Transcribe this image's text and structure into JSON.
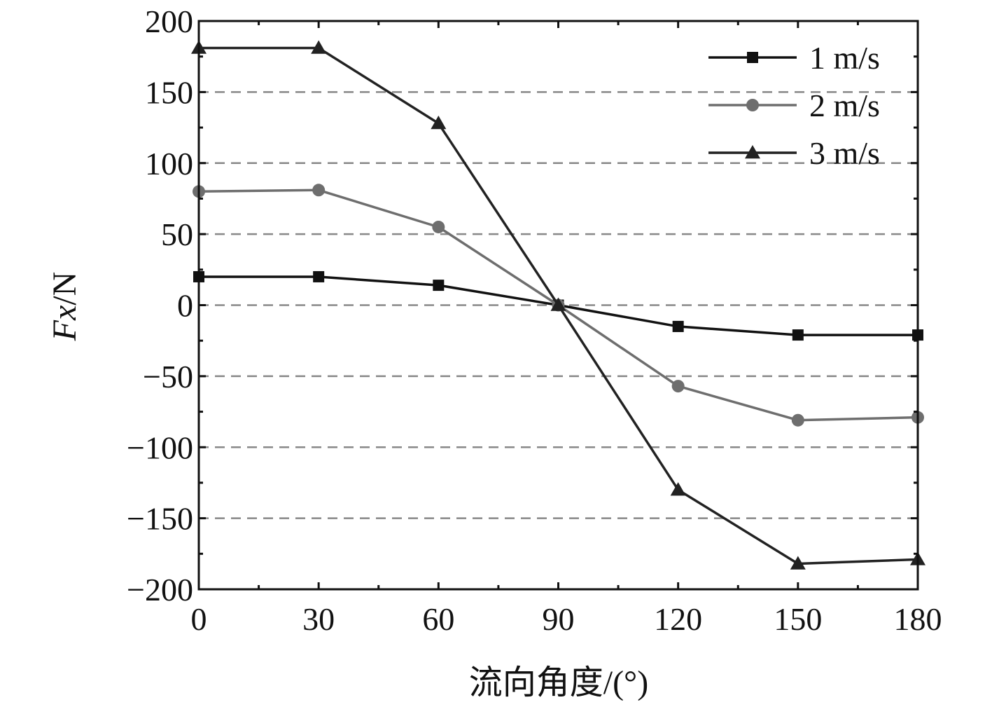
{
  "chart_data": {
    "type": "line",
    "x": [
      0,
      30,
      60,
      90,
      120,
      150,
      180
    ],
    "series": [
      {
        "name": "1 m/s",
        "marker": "square",
        "color": "#111111",
        "values": [
          20,
          20,
          14,
          0,
          -15,
          -21,
          -21
        ]
      },
      {
        "name": "2 m/s",
        "marker": "circle",
        "color": "#6e6e6e",
        "values": [
          80,
          81,
          55,
          0,
          -57,
          -81,
          -79
        ]
      },
      {
        "name": "3 m/s",
        "marker": "triangle",
        "color": "#222222",
        "values": [
          181,
          181,
          128,
          0,
          -130,
          -182,
          -179
        ]
      }
    ],
    "xlabel": "流向角度/(°)",
    "ylabel_italic": "Fx",
    "ylabel_rest": "/N",
    "xlim": [
      0,
      180
    ],
    "ylim": [
      -200,
      200
    ],
    "xticks": [
      0,
      30,
      60,
      90,
      120,
      150,
      180
    ],
    "yticks": [
      200,
      150,
      100,
      50,
      0,
      -50,
      -100,
      -150,
      -200
    ],
    "ytick_labels": [
      "200",
      "150",
      "100",
      "50",
      "0",
      "−50",
      "−100",
      "−150",
      "−200"
    ],
    "grid": "horizontal dashed",
    "legend_position": "top-right"
  }
}
